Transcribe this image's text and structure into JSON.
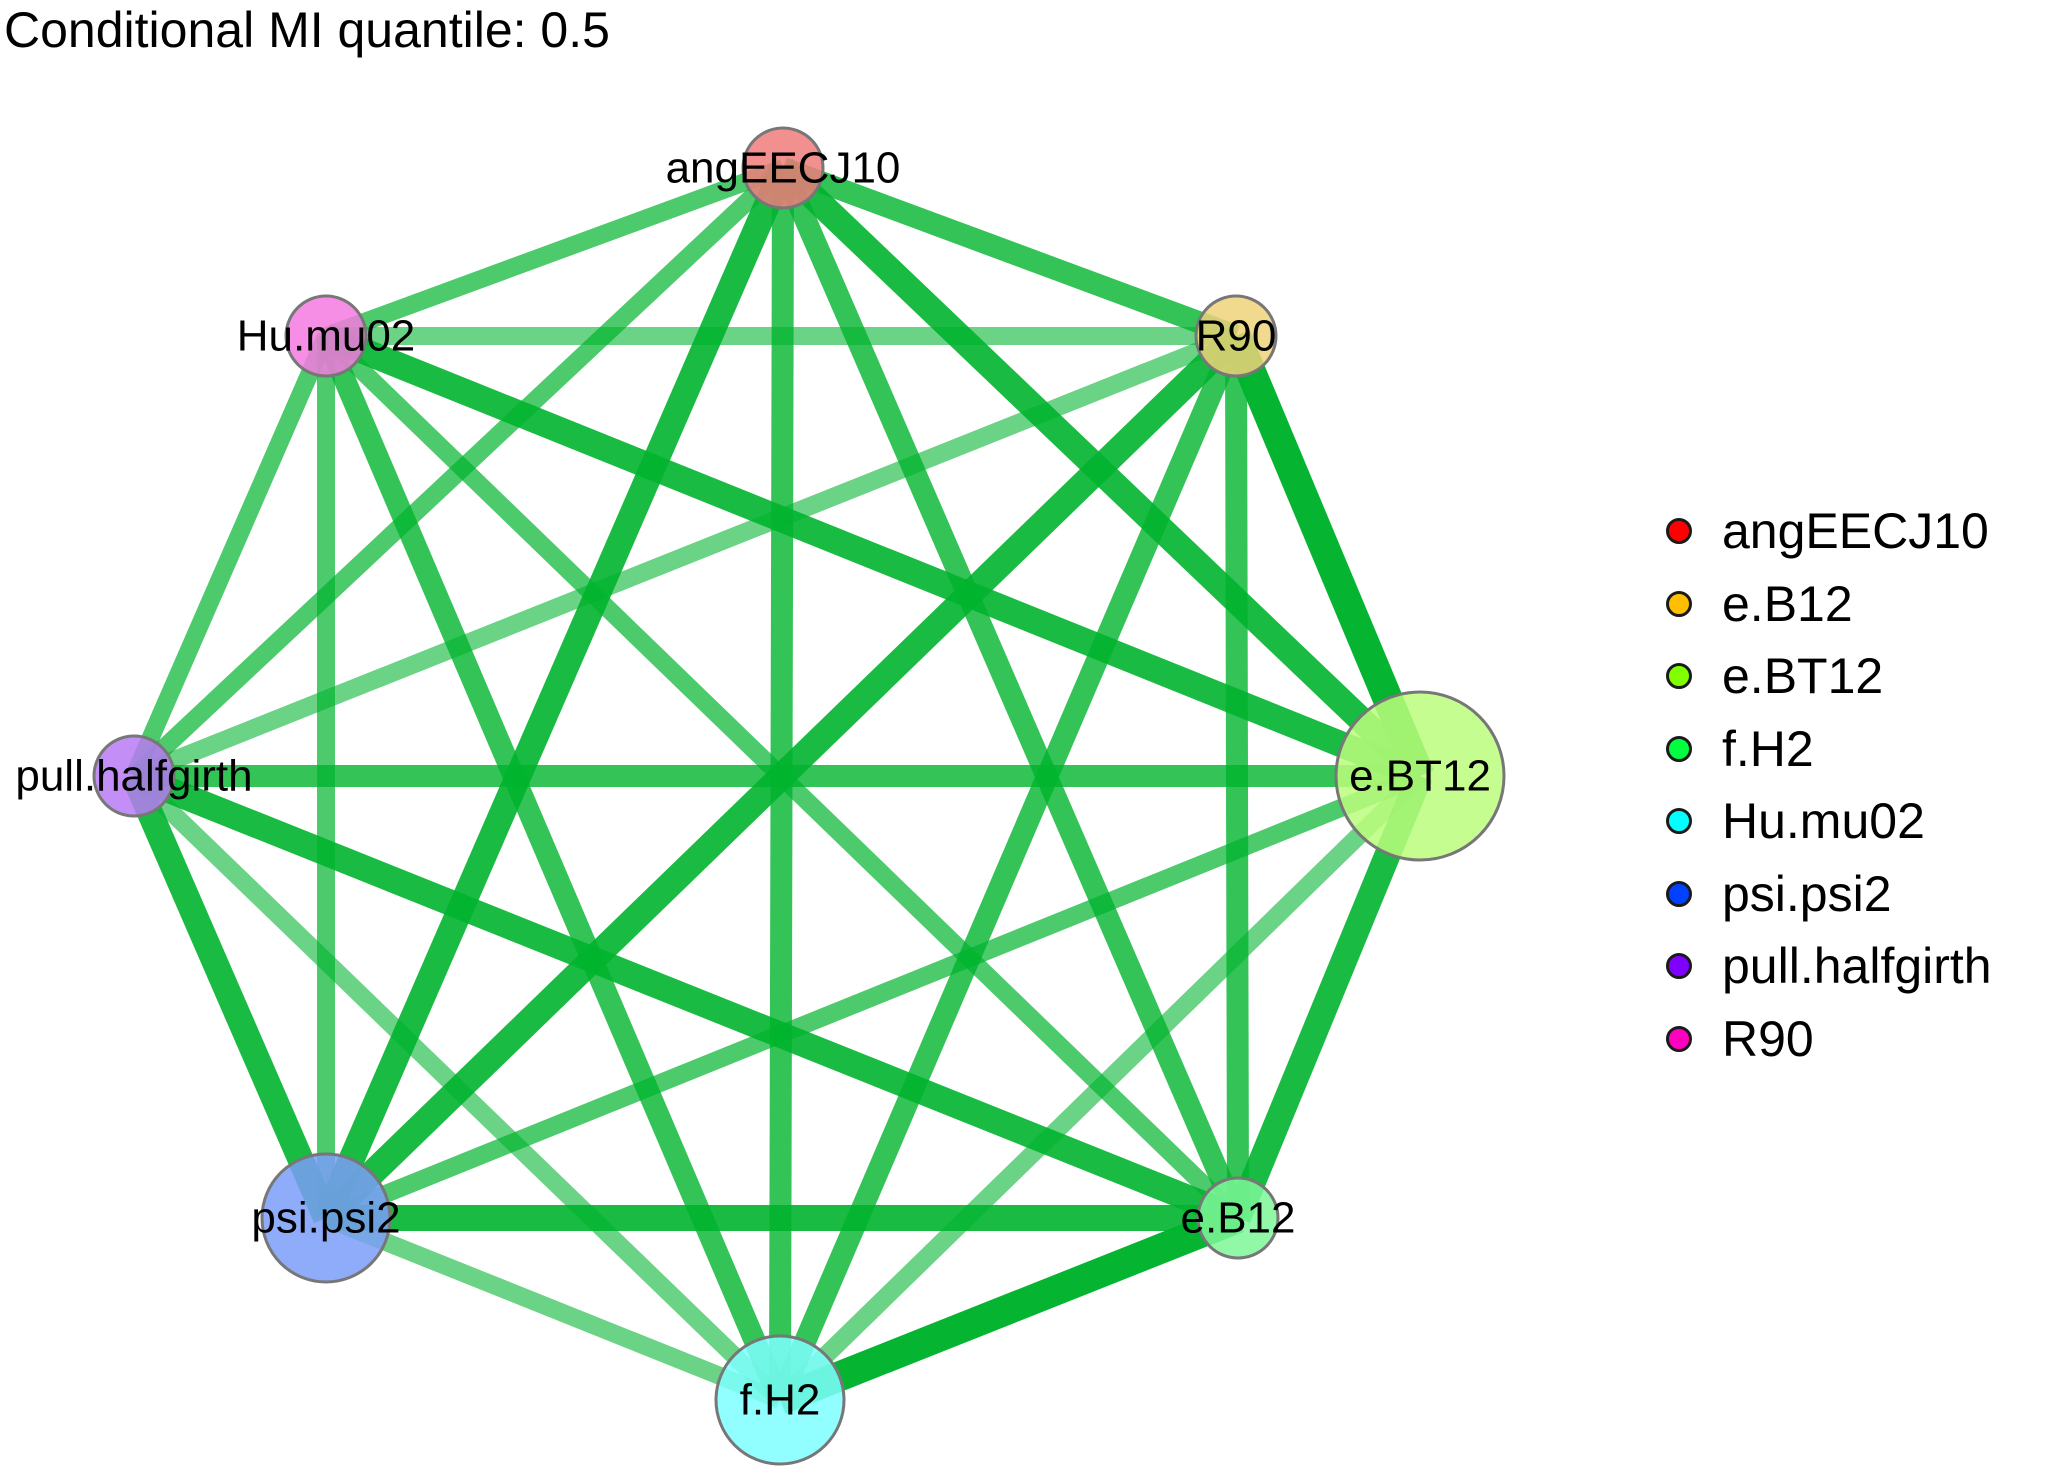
{
  "title": "Conditional MI quantile: 0.5",
  "nodes": [
    {
      "id": "angEECJ10",
      "fill": "#f07c7c",
      "size": "small"
    },
    {
      "id": "R90",
      "fill": "#efd27a",
      "size": "small"
    },
    {
      "id": "e.BT12",
      "fill": "#bcfd7c",
      "size": "large"
    },
    {
      "id": "e.B12",
      "fill": "#7ef799",
      "size": "small"
    },
    {
      "id": "f.H2",
      "fill": "#7effff",
      "size": "medium"
    },
    {
      "id": "psi.psi2",
      "fill": "#7a9ef8",
      "size": "medium"
    },
    {
      "id": "pull.halfgirth",
      "fill": "#b97af5",
      "size": "small"
    },
    {
      "id": "Hu.mu02",
      "fill": "#f57ae0",
      "size": "small"
    }
  ],
  "node_labels": [
    "angEECJ10",
    "R90",
    "e.BT12",
    "e.B12",
    "f.H2",
    "psi.psi2",
    "pull.halfgirth",
    "Hu.mu02"
  ],
  "edges": [
    {
      "from": "angEECJ10",
      "to": "R90",
      "strength": "medium"
    },
    {
      "from": "angEECJ10",
      "to": "e.BT12",
      "strength": "strong"
    },
    {
      "from": "angEECJ10",
      "to": "e.B12",
      "strength": "medium"
    },
    {
      "from": "angEECJ10",
      "to": "f.H2",
      "strength": "medium"
    },
    {
      "from": "angEECJ10",
      "to": "psi.psi2",
      "strength": "strong"
    },
    {
      "from": "angEECJ10",
      "to": "pull.halfgirth",
      "strength": "weak"
    },
    {
      "from": "angEECJ10",
      "to": "Hu.mu02",
      "strength": "weak"
    },
    {
      "from": "R90",
      "to": "e.BT12",
      "strength": "strongest"
    },
    {
      "from": "R90",
      "to": "e.B12",
      "strength": "medium"
    },
    {
      "from": "R90",
      "to": "f.H2",
      "strength": "medium"
    },
    {
      "from": "R90",
      "to": "psi.psi2",
      "strength": "strong"
    },
    {
      "from": "R90",
      "to": "pull.halfgirth",
      "strength": "faint"
    },
    {
      "from": "R90",
      "to": "Hu.mu02",
      "strength": "faint"
    },
    {
      "from": "e.BT12",
      "to": "e.B12",
      "strength": "strong"
    },
    {
      "from": "e.BT12",
      "to": "f.H2",
      "strength": "faint"
    },
    {
      "from": "e.BT12",
      "to": "psi.psi2",
      "strength": "weak"
    },
    {
      "from": "e.BT12",
      "to": "pull.halfgirth",
      "strength": "medium"
    },
    {
      "from": "e.BT12",
      "to": "Hu.mu02",
      "strength": "strong"
    },
    {
      "from": "e.B12",
      "to": "f.H2",
      "strength": "strongest"
    },
    {
      "from": "e.B12",
      "to": "psi.psi2",
      "strength": "strong"
    },
    {
      "from": "e.B12",
      "to": "pull.halfgirth",
      "strength": "strong"
    },
    {
      "from": "e.B12",
      "to": "Hu.mu02",
      "strength": "weak"
    },
    {
      "from": "f.H2",
      "to": "psi.psi2",
      "strength": "faint"
    },
    {
      "from": "f.H2",
      "to": "pull.halfgirth",
      "strength": "faint"
    },
    {
      "from": "f.H2",
      "to": "Hu.mu02",
      "strength": "medium"
    },
    {
      "from": "psi.psi2",
      "to": "pull.halfgirth",
      "strength": "strong"
    },
    {
      "from": "psi.psi2",
      "to": "Hu.mu02",
      "strength": "weak"
    },
    {
      "from": "pull.halfgirth",
      "to": "Hu.mu02",
      "strength": "weak"
    }
  ],
  "legend": {
    "items": [
      {
        "label": "angEECJ10",
        "color": "#ff0000"
      },
      {
        "label": "e.B12",
        "color": "#ffbf00"
      },
      {
        "label": "e.BT12",
        "color": "#80ff00"
      },
      {
        "label": "f.H2",
        "color": "#00ff40"
      },
      {
        "label": "Hu.mu02",
        "color": "#00ffff"
      },
      {
        "label": "psi.psi2",
        "color": "#0040ff"
      },
      {
        "label": "pull.halfgirth",
        "color": "#8000ff"
      },
      {
        "label": "R90",
        "color": "#ff00bf"
      }
    ]
  },
  "colors": {
    "edge_green": "#00b42d",
    "node_border": "#777777"
  }
}
